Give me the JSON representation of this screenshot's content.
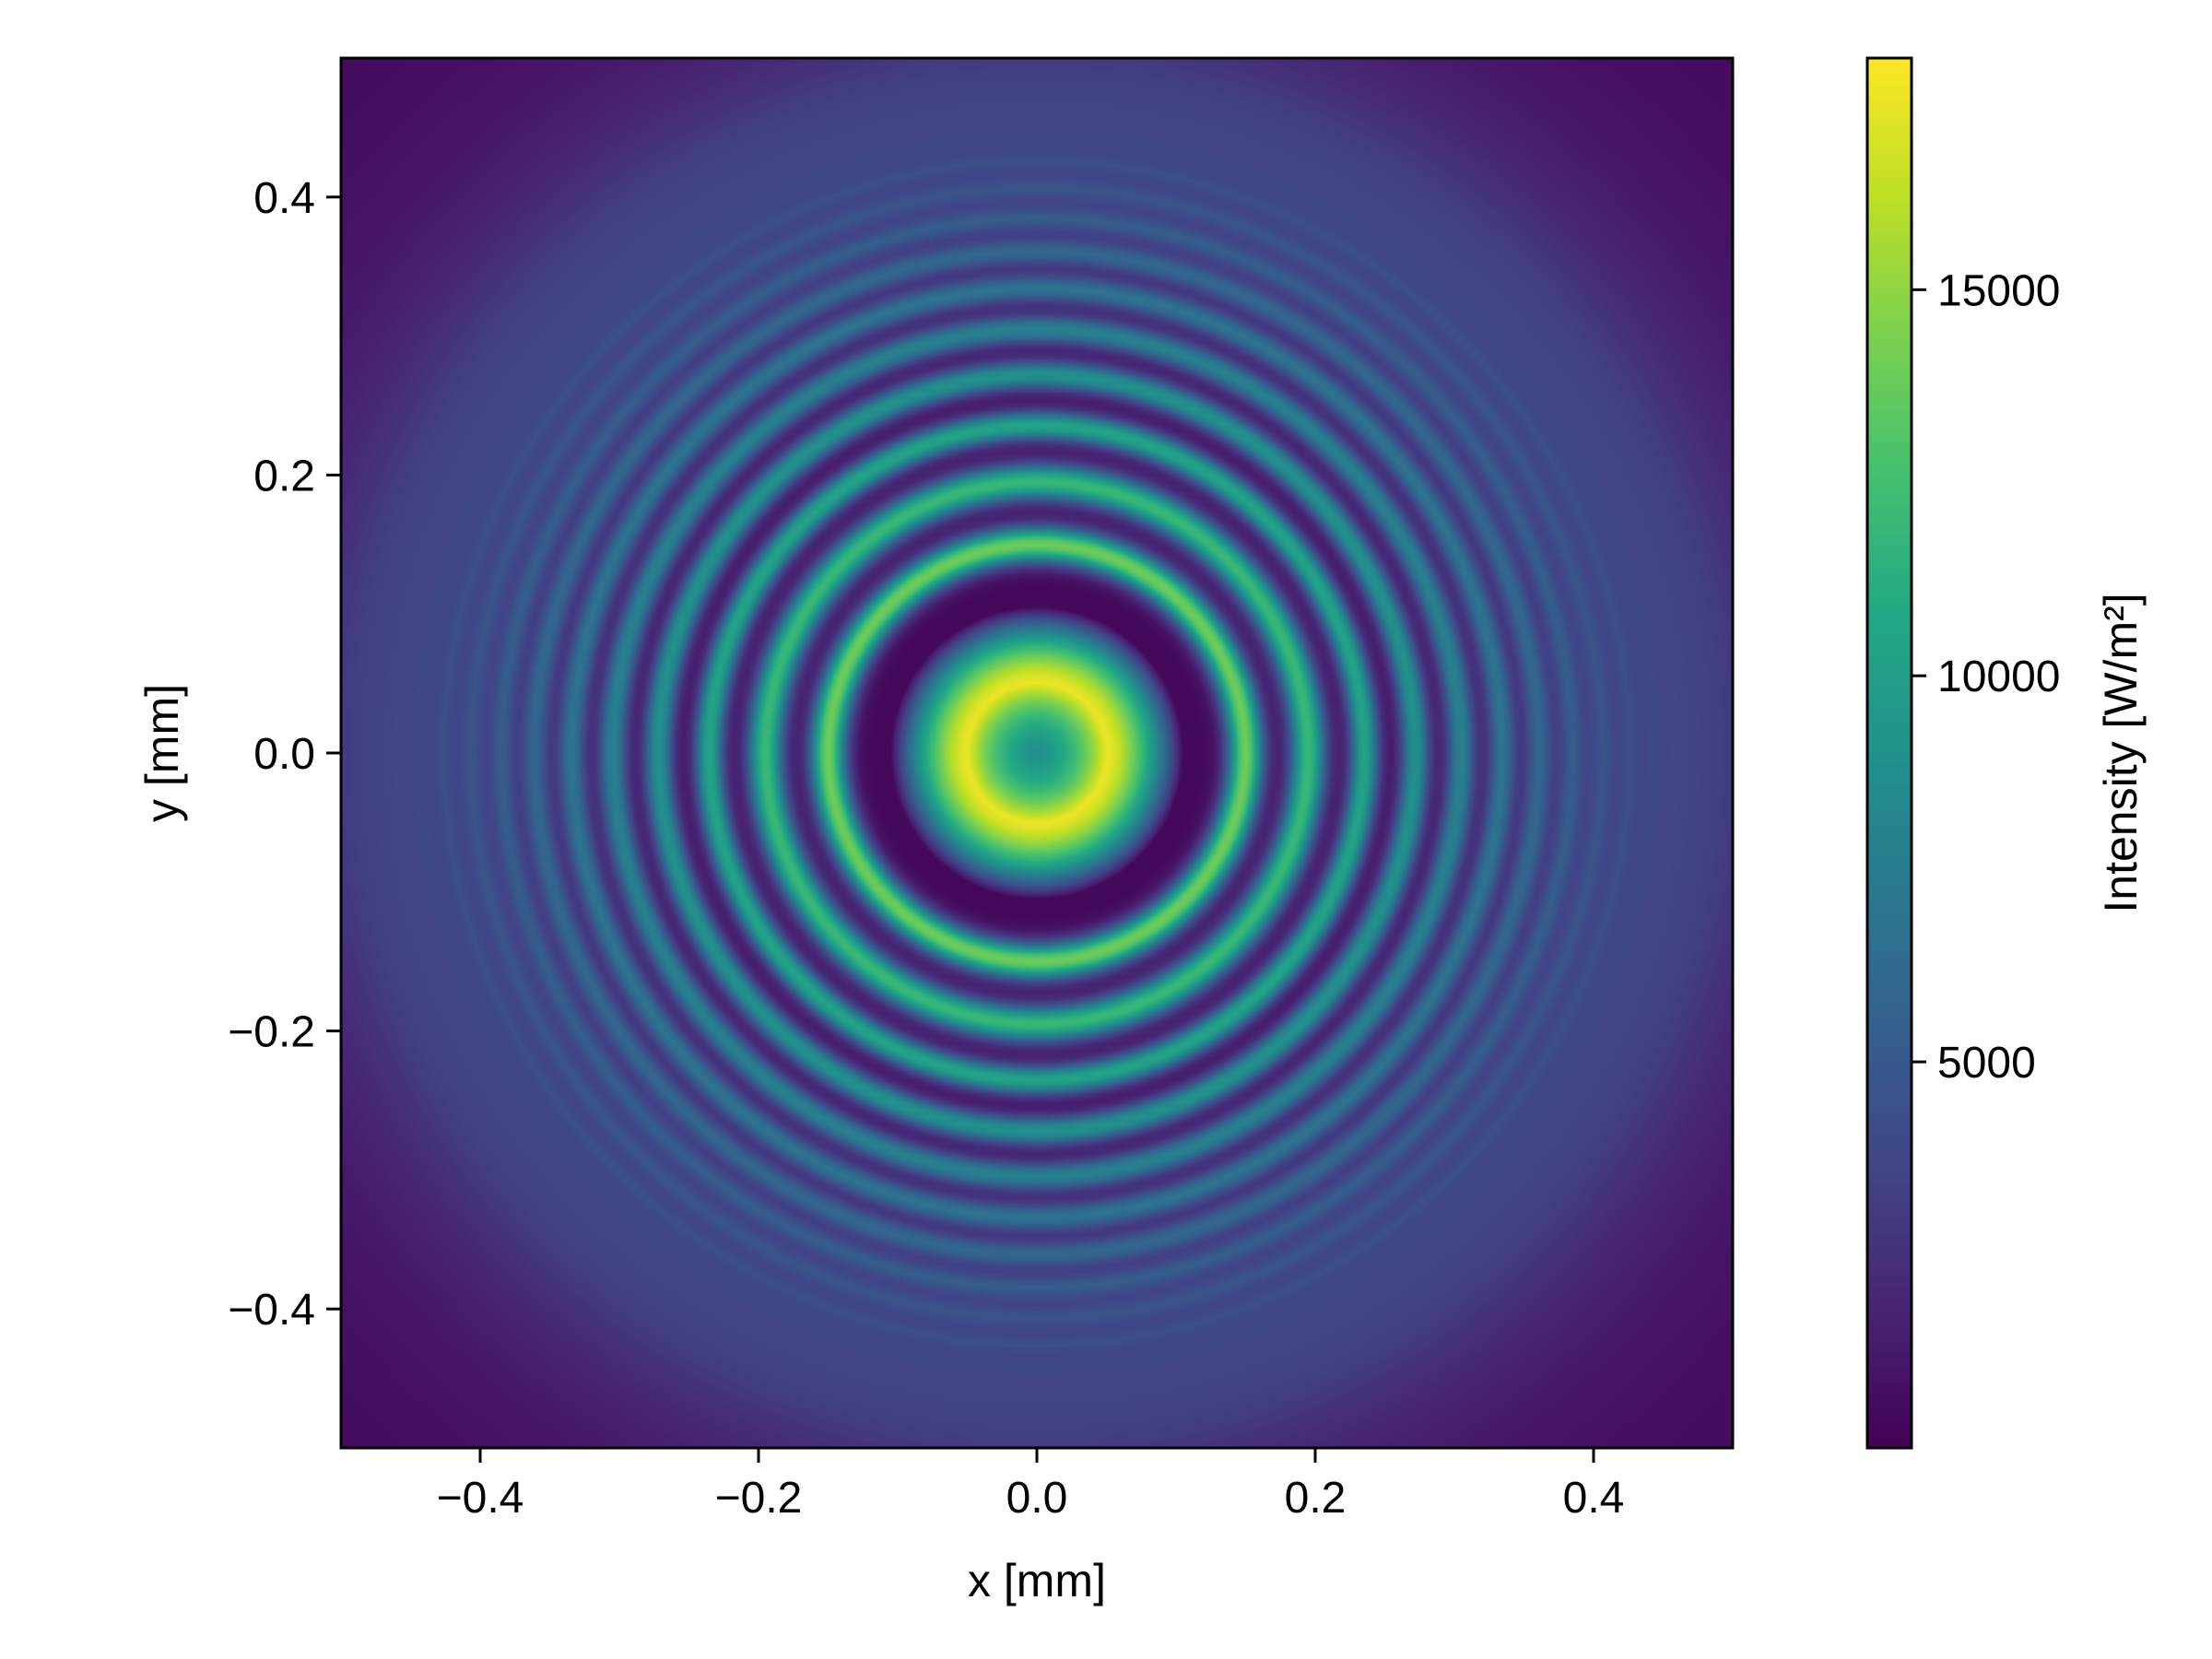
{
  "chart_data": {
    "type": "heatmap",
    "title": "",
    "xlabel": "x [mm]",
    "ylabel": "y [mm]",
    "xlim": [
      -0.5,
      0.5
    ],
    "ylim": [
      -0.5,
      0.5
    ],
    "x_ticks": [
      -0.4,
      -0.2,
      0.0,
      0.2,
      0.4
    ],
    "x_tick_labels": [
      "−0.4",
      "−0.2",
      "0.0",
      "0.2",
      "0.4"
    ],
    "y_ticks": [
      -0.4,
      -0.2,
      0.0,
      0.2,
      0.4
    ],
    "y_tick_labels": [
      "−0.4",
      "−0.2",
      "0.0",
      "0.2",
      "0.4"
    ],
    "grid": false,
    "colormap": "viridis",
    "pattern": "concentric rings (Fresnel diffraction)",
    "center_mm": [
      0.0,
      0.0
    ],
    "intensity_profile_W_per_m2": [
      {
        "r_mm": 0.0,
        "value": 9000
      },
      {
        "r_mm": 0.05,
        "value": 17500
      },
      {
        "r_mm": 0.1,
        "value": 500
      },
      {
        "r_mm": 0.15,
        "value": 13500
      },
      {
        "r_mm": 0.175,
        "value": 500
      },
      {
        "r_mm": 0.2,
        "value": 11000
      },
      {
        "r_mm": 0.22,
        "value": 500
      },
      {
        "r_mm": 0.245,
        "value": 9000
      },
      {
        "r_mm": 0.265,
        "value": 500
      },
      {
        "r_mm": 0.28,
        "value": 7000
      },
      {
        "r_mm": 0.3,
        "value": 5500
      },
      {
        "r_mm": 0.35,
        "value": 3500
      },
      {
        "r_mm": 0.4,
        "value": 2000
      },
      {
        "r_mm": 0.5,
        "value": 500
      }
    ],
    "colorbar": {
      "label": "Intensity [W/m²]",
      "range": [
        0,
        18000
      ],
      "ticks": [
        5000,
        10000,
        15000
      ],
      "tick_labels": [
        "5000",
        "10000",
        "15000"
      ]
    }
  }
}
